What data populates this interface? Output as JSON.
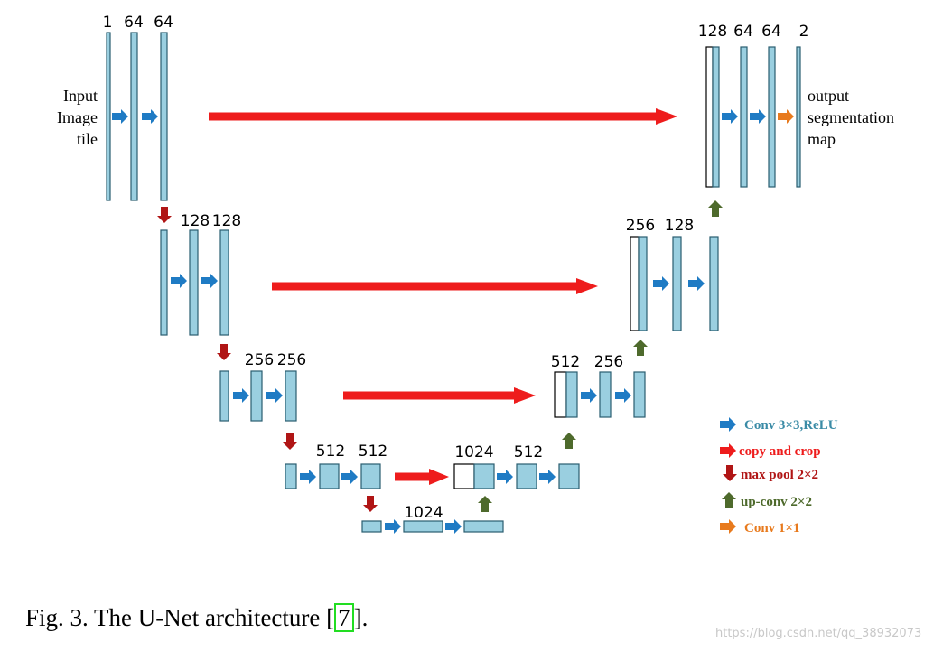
{
  "labels": {
    "input": [
      "Input",
      "Image",
      "tile"
    ],
    "output": [
      "output",
      "segmentation",
      "map"
    ]
  },
  "channels": {
    "enc1": [
      "1",
      "64",
      "64"
    ],
    "enc2": [
      "128",
      "128"
    ],
    "enc3": [
      "256",
      "256"
    ],
    "enc4": [
      "512",
      "512"
    ],
    "bottom": "1024",
    "dec4": [
      "1024",
      "512"
    ],
    "dec3": [
      "512",
      "256"
    ],
    "dec2": [
      "256",
      "128"
    ],
    "dec1": [
      "128",
      "64",
      "64",
      "2"
    ]
  },
  "legend": [
    {
      "label": "Conv 3×3,ReLU",
      "color": "#3a8ba6",
      "arrow": "blue-right-arrow"
    },
    {
      "label": "copy and crop",
      "color": "#ee1c1c",
      "arrow": "red-right-arrow"
    },
    {
      "label": "max pool 2×2",
      "color": "#b01515",
      "arrow": "dark-red-down-arrow"
    },
    {
      "label": "up-conv 2×2",
      "color": "#4e6a2c",
      "arrow": "green-up-arrow"
    },
    {
      "label": "Conv 1×1",
      "color": "#e87a1d",
      "arrow": "orange-right-arrow"
    }
  ],
  "colors": {
    "feature_map": "#9acfe0",
    "conv_arrow": "#1f7bc4",
    "copy_crop": "#ee1c1c",
    "max_pool": "#b01515",
    "up_conv": "#4e6a2c",
    "conv1x1": "#e87a1d",
    "caption_ref_box": "#22dd22"
  },
  "caption": {
    "text_before": "Fig. 3.  The U-Net architecture [",
    "ref": "7",
    "text_after": "]."
  },
  "watermark": "https://blog.csdn.net/qq_38932073"
}
